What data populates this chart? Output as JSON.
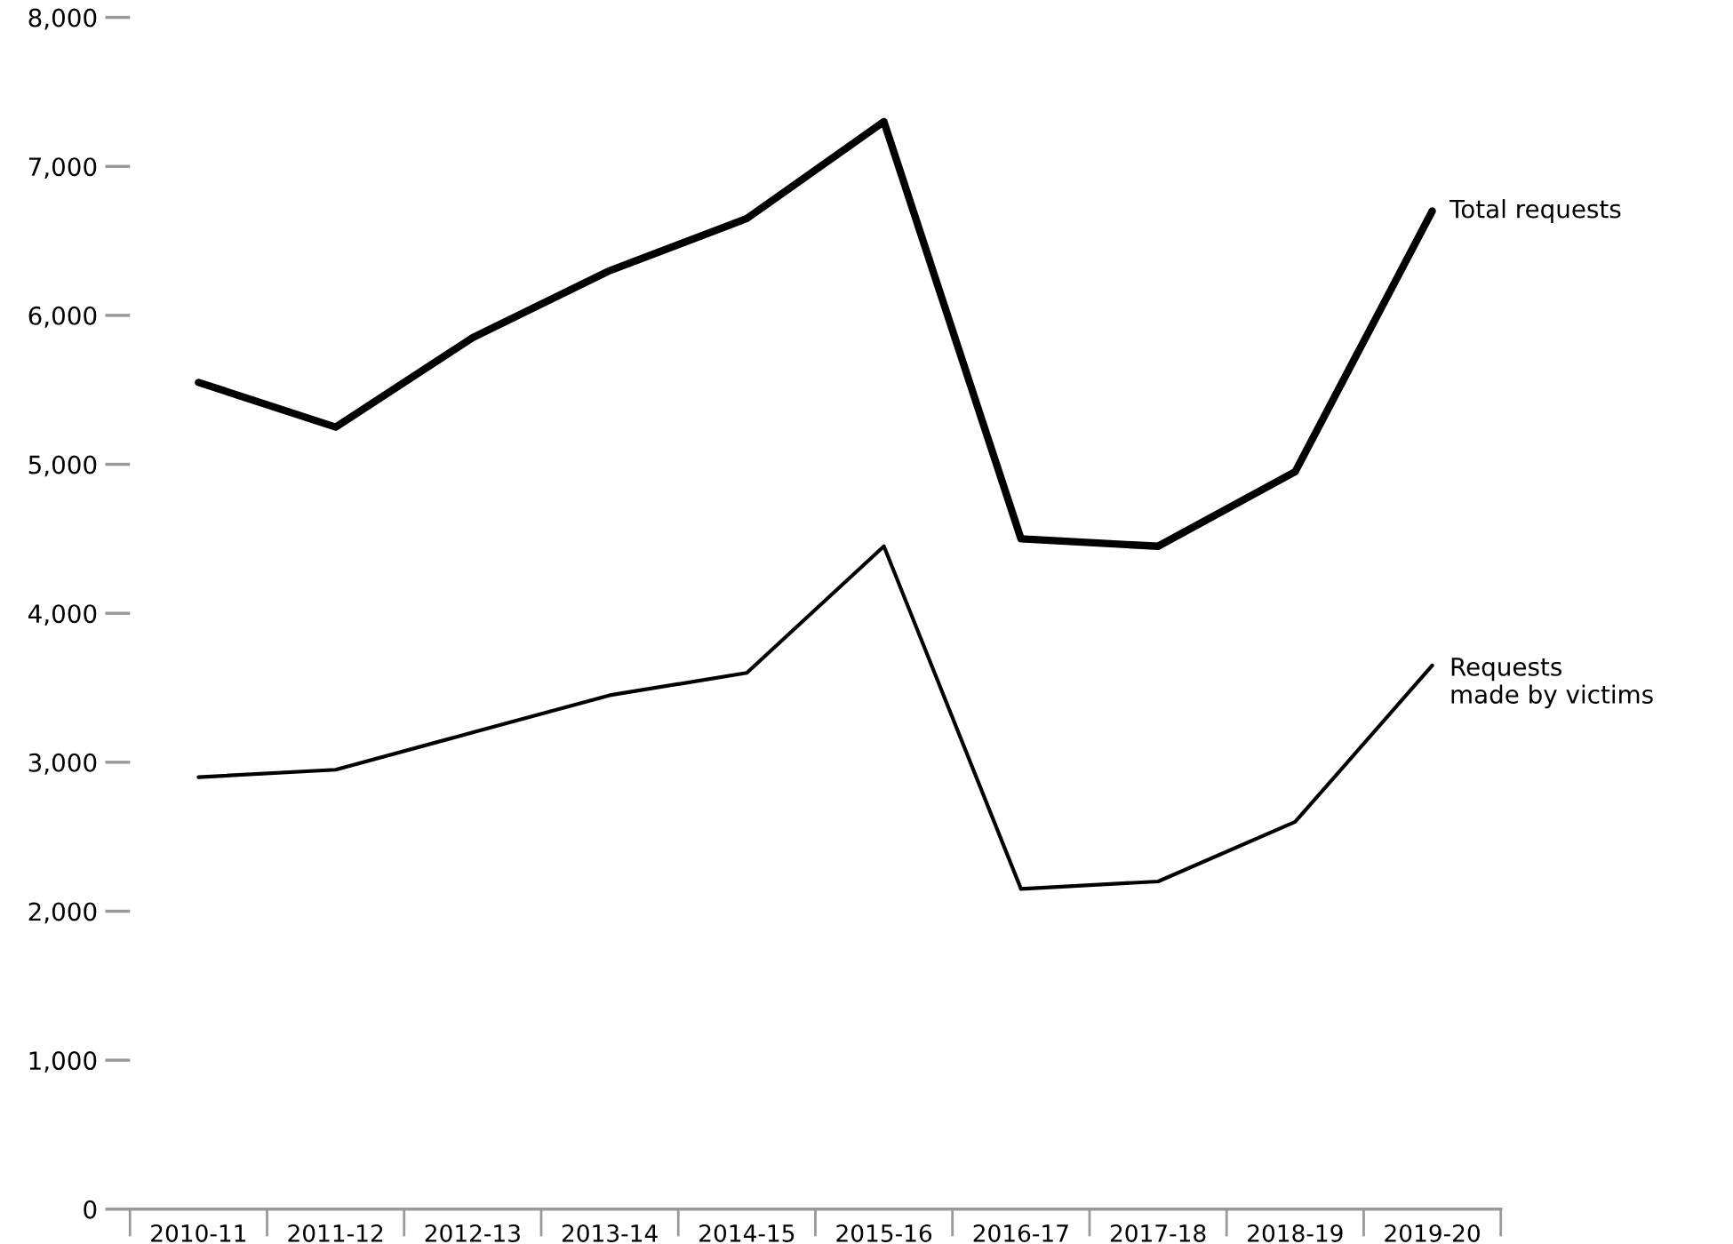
{
  "chart_data": {
    "type": "line",
    "categories": [
      "2010-11",
      "2011-12",
      "2012-13",
      "2013-14",
      "2014-15",
      "2015-16",
      "2016-17",
      "2017-18",
      "2018-19",
      "2019-20"
    ],
    "series": [
      {
        "name": "Total requests",
        "color": "#000000",
        "values": [
          5550,
          5250,
          5850,
          6300,
          6650,
          7300,
          4500,
          4450,
          4950,
          6700
        ]
      },
      {
        "name": "Requests\nmade by victims",
        "color": "#000000",
        "values": [
          2900,
          2950,
          3200,
          3450,
          3600,
          4450,
          2150,
          2200,
          2600,
          3650
        ]
      }
    ],
    "ylim": [
      0,
      8000
    ],
    "yticks": [
      {
        "value": 0,
        "label": "0"
      },
      {
        "value": 1000,
        "label": "1,000"
      },
      {
        "value": 2000,
        "label": "2,000"
      },
      {
        "value": 3000,
        "label": "3,000"
      },
      {
        "value": 4000,
        "label": "4,000"
      },
      {
        "value": 5000,
        "label": "5,000"
      },
      {
        "value": 6000,
        "label": "6,000"
      },
      {
        "value": 7000,
        "label": "7,000"
      },
      {
        "value": 8000,
        "label": "8,000"
      }
    ],
    "grid": false,
    "legend": false,
    "marker": "none",
    "line_style": "solid"
  }
}
